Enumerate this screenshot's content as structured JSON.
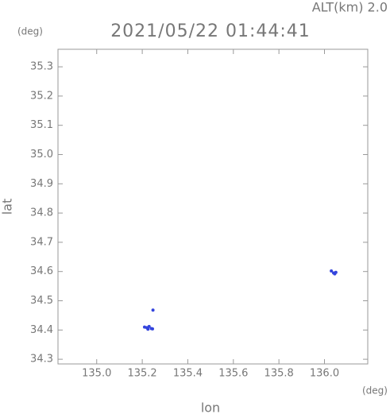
{
  "chart_data": {
    "type": "scatter",
    "title": "2021/05/22 01:44:41",
    "annotation": "ALT(km) 2.0",
    "y_unit": "(deg)",
    "x_unit": "(deg)",
    "x_label": "lon",
    "y_label": "lat",
    "color": "#3344dd",
    "x": [
      135.247,
      135.21,
      135.22,
      135.23,
      135.24,
      135.225,
      135.245,
      136.03,
      136.04,
      136.05,
      136.045
    ],
    "values": [
      34.468,
      34.41,
      34.408,
      34.412,
      34.405,
      34.403,
      34.404,
      34.602,
      34.595,
      34.597,
      34.592
    ],
    "xlim": [
      134.83,
      136.19
    ],
    "ylim": [
      34.284,
      35.36
    ],
    "xticks": [
      {
        "value": 135,
        "label": "135.0"
      },
      135.2,
      135.4,
      135.6,
      135.8,
      {
        "value": 136,
        "label": "136.0"
      }
    ],
    "yticks": [
      34.3,
      34.4,
      34.5,
      34.6,
      34.7,
      34.8,
      34.9,
      {
        "value": 35,
        "label": "35.0"
      },
      35.1,
      35.2,
      35.3
    ]
  }
}
